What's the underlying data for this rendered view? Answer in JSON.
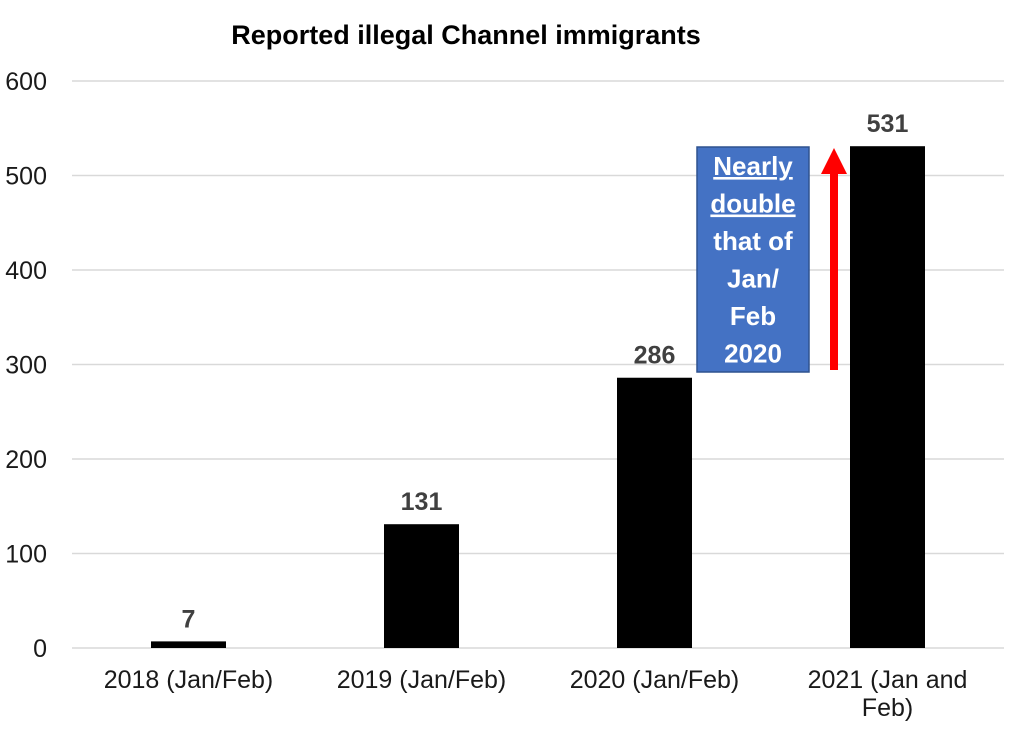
{
  "chart_data": {
    "type": "bar",
    "title": "Reported illegal Channel immigrants",
    "categories": [
      "2018 (Jan/Feb)",
      "2019 (Jan/Feb)",
      "2020 (Jan/Feb)",
      "2021 (Jan and Feb)"
    ],
    "values": [
      7,
      131,
      286,
      531
    ],
    "data_labels": [
      "7",
      "131",
      "286",
      "531"
    ],
    "ylim": [
      0,
      600
    ],
    "yticks": [
      0,
      100,
      200,
      300,
      400,
      500,
      600
    ],
    "grid": true,
    "legend": "none",
    "bar_color": "#000000",
    "annotation": {
      "lines": [
        "Nearly",
        "double",
        "that of",
        "Jan/",
        "Feb",
        "2020"
      ],
      "underlined_lines": [
        "Nearly",
        "double"
      ],
      "box_color": "#4472c4",
      "text_color": "#ffffff",
      "arrow_color": "#ff0000"
    }
  }
}
